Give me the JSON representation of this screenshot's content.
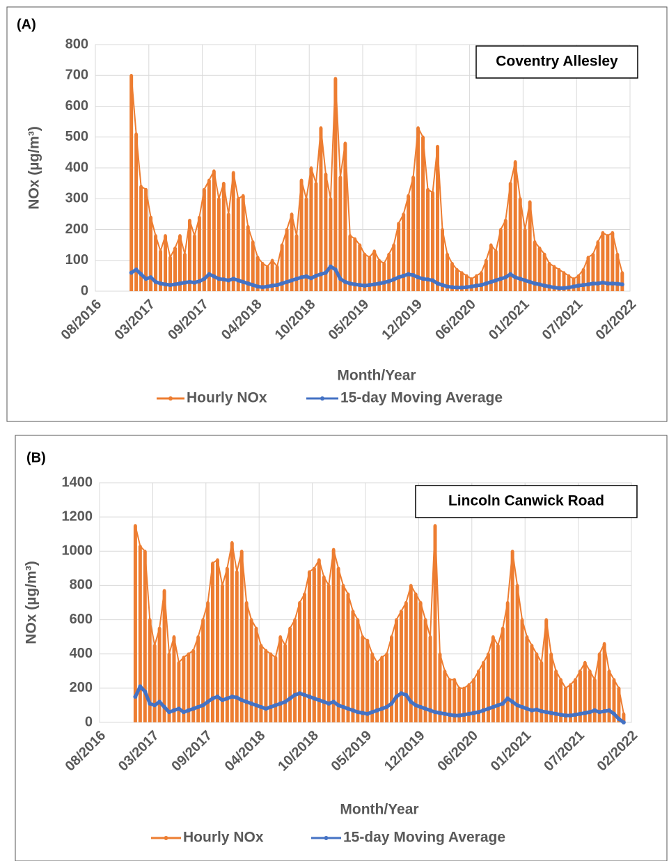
{
  "chart_data": [
    {
      "type": "line",
      "panel_label": "(A)",
      "annotation": "Coventry Allesley",
      "x_label": "Month/Year",
      "y_label": "NOx (µg/m³)",
      "grid": true,
      "xlim": [
        2016.58,
        2022.08
      ],
      "xticks": [
        {
          "value": 2016.58,
          "label": "08/2016"
        },
        {
          "value": 2017.13,
          "label": "03/2017"
        },
        {
          "value": 2017.68,
          "label": "09/2017"
        },
        {
          "value": 2018.23,
          "label": "04/2018"
        },
        {
          "value": 2018.78,
          "label": "10/2018"
        },
        {
          "value": 2019.33,
          "label": "05/2019"
        },
        {
          "value": 2019.88,
          "label": "12/2019"
        },
        {
          "value": 2020.43,
          "label": "06/2020"
        },
        {
          "value": 2020.98,
          "label": "01/2021"
        },
        {
          "value": 2021.53,
          "label": "07/2021"
        },
        {
          "value": 2022.08,
          "label": "02/2022"
        }
      ],
      "ylim": [
        0,
        800
      ],
      "yticks": [
        0,
        100,
        200,
        300,
        400,
        500,
        600,
        700,
        800
      ],
      "x": [
        2016.95,
        2017.0,
        2017.05,
        2017.1,
        2017.15,
        2017.2,
        2017.25,
        2017.3,
        2017.35,
        2017.4,
        2017.45,
        2017.5,
        2017.55,
        2017.6,
        2017.65,
        2017.7,
        2017.75,
        2017.8,
        2017.85,
        2017.9,
        2017.95,
        2018.0,
        2018.05,
        2018.1,
        2018.15,
        2018.2,
        2018.25,
        2018.3,
        2018.35,
        2018.4,
        2018.45,
        2018.5,
        2018.55,
        2018.6,
        2018.65,
        2018.7,
        2018.75,
        2018.8,
        2018.85,
        2018.9,
        2018.95,
        2019.0,
        2019.05,
        2019.1,
        2019.15,
        2019.2,
        2019.25,
        2019.3,
        2019.35,
        2019.4,
        2019.45,
        2019.5,
        2019.55,
        2019.6,
        2019.65,
        2019.7,
        2019.75,
        2019.8,
        2019.85,
        2019.9,
        2019.95,
        2020.0,
        2020.05,
        2020.1,
        2020.15,
        2020.2,
        2020.25,
        2020.3,
        2020.35,
        2020.4,
        2020.45,
        2020.5,
        2020.55,
        2020.6,
        2020.65,
        2020.7,
        2020.75,
        2020.8,
        2020.85,
        2020.9,
        2020.95,
        2021.0,
        2021.05,
        2021.1,
        2021.15,
        2021.2,
        2021.25,
        2021.3,
        2021.35,
        2021.4,
        2021.45,
        2021.5,
        2021.55,
        2021.6,
        2021.65,
        2021.7,
        2021.75,
        2021.8,
        2021.85,
        2021.9,
        2021.95,
        2022.0
      ],
      "series": [
        {
          "name": "Hourly NOx",
          "color": "#ed7d31",
          "values": [
            700,
            510,
            340,
            330,
            240,
            180,
            130,
            180,
            110,
            140,
            180,
            120,
            230,
            180,
            240,
            330,
            360,
            390,
            300,
            350,
            250,
            385,
            300,
            310,
            210,
            160,
            110,
            90,
            80,
            100,
            80,
            150,
            200,
            250,
            180,
            360,
            300,
            400,
            350,
            530,
            380,
            300,
            690,
            370,
            480,
            180,
            170,
            150,
            120,
            110,
            130,
            100,
            90,
            120,
            150,
            220,
            250,
            310,
            370,
            530,
            500,
            330,
            320,
            470,
            200,
            120,
            90,
            70,
            60,
            50,
            40,
            50,
            60,
            100,
            150,
            130,
            200,
            230,
            350,
            420,
            300,
            200,
            290,
            160,
            140,
            120,
            90,
            80,
            70,
            60,
            50,
            40,
            50,
            70,
            110,
            120,
            160,
            190,
            180,
            190,
            120,
            60
          ]
        },
        {
          "name": "15-day Moving Average",
          "color": "#4472c4",
          "values": [
            60,
            70,
            55,
            40,
            45,
            30,
            25,
            22,
            20,
            22,
            25,
            28,
            30,
            28,
            32,
            40,
            55,
            48,
            40,
            38,
            35,
            40,
            35,
            30,
            25,
            20,
            15,
            13,
            15,
            18,
            20,
            25,
            30,
            35,
            40,
            45,
            48,
            42,
            50,
            55,
            60,
            80,
            70,
            40,
            30,
            25,
            22,
            20,
            18,
            20,
            22,
            25,
            28,
            32,
            38,
            45,
            50,
            55,
            52,
            45,
            40,
            38,
            35,
            25,
            20,
            15,
            13,
            12,
            12,
            13,
            15,
            18,
            20,
            25,
            30,
            35,
            40,
            45,
            55,
            45,
            40,
            35,
            30,
            25,
            22,
            18,
            15,
            12,
            10,
            10,
            12,
            15,
            18,
            20,
            22,
            25,
            25,
            28,
            25,
            25,
            24,
            22
          ]
        }
      ]
    },
    {
      "type": "line",
      "panel_label": "(B)",
      "annotation": "Lincoln Canwick Road",
      "x_label": "Month/Year",
      "y_label": "NOx (µg/m³)",
      "grid": true,
      "xlim": [
        2016.58,
        2022.08
      ],
      "xticks": [
        {
          "value": 2016.58,
          "label": "08/2016"
        },
        {
          "value": 2017.13,
          "label": "03/2017"
        },
        {
          "value": 2017.68,
          "label": "09/2017"
        },
        {
          "value": 2018.23,
          "label": "04/2018"
        },
        {
          "value": 2018.78,
          "label": "10/2018"
        },
        {
          "value": 2019.33,
          "label": "05/2019"
        },
        {
          "value": 2019.88,
          "label": "12/2019"
        },
        {
          "value": 2020.43,
          "label": "06/2020"
        },
        {
          "value": 2020.98,
          "label": "01/2021"
        },
        {
          "value": 2021.53,
          "label": "07/2021"
        },
        {
          "value": 2022.08,
          "label": "02/2022"
        }
      ],
      "ylim": [
        0,
        1400
      ],
      "yticks": [
        0,
        200,
        400,
        600,
        800,
        1000,
        1200,
        1400
      ],
      "x": [
        2016.95,
        2017.0,
        2017.05,
        2017.1,
        2017.15,
        2017.2,
        2017.25,
        2017.3,
        2017.35,
        2017.4,
        2017.45,
        2017.5,
        2017.55,
        2017.6,
        2017.65,
        2017.7,
        2017.75,
        2017.8,
        2017.85,
        2017.9,
        2017.95,
        2018.0,
        2018.05,
        2018.1,
        2018.15,
        2018.2,
        2018.25,
        2018.3,
        2018.35,
        2018.4,
        2018.45,
        2018.5,
        2018.55,
        2018.6,
        2018.65,
        2018.7,
        2018.75,
        2018.8,
        2018.85,
        2018.9,
        2018.95,
        2019.0,
        2019.05,
        2019.1,
        2019.15,
        2019.2,
        2019.25,
        2019.3,
        2019.35,
        2019.4,
        2019.45,
        2019.5,
        2019.55,
        2019.6,
        2019.65,
        2019.7,
        2019.75,
        2019.8,
        2019.85,
        2019.9,
        2019.95,
        2020.0,
        2020.05,
        2020.1,
        2020.15,
        2020.2,
        2020.25,
        2020.3,
        2020.35,
        2020.4,
        2020.45,
        2020.5,
        2020.55,
        2020.6,
        2020.65,
        2020.7,
        2020.75,
        2020.8,
        2020.85,
        2020.9,
        2020.95,
        2021.0,
        2021.05,
        2021.1,
        2021.15,
        2021.2,
        2021.25,
        2021.3,
        2021.35,
        2021.4,
        2021.45,
        2021.5,
        2021.55,
        2021.6,
        2021.65,
        2021.7,
        2021.75,
        2021.8,
        2021.85,
        2021.9,
        2021.95,
        2022.0
      ],
      "series": [
        {
          "name": "Hourly NOx",
          "color": "#ed7d31",
          "values": [
            1150,
            1030,
            1000,
            600,
            450,
            550,
            770,
            400,
            500,
            350,
            380,
            400,
            420,
            500,
            600,
            700,
            930,
            950,
            800,
            900,
            1050,
            880,
            1000,
            700,
            600,
            550,
            450,
            420,
            400,
            380,
            500,
            450,
            550,
            600,
            700,
            750,
            880,
            900,
            950,
            850,
            800,
            1010,
            900,
            800,
            750,
            650,
            600,
            500,
            480,
            400,
            350,
            380,
            400,
            500,
            600,
            650,
            700,
            800,
            750,
            700,
            600,
            500,
            1150,
            400,
            300,
            250,
            250,
            200,
            200,
            220,
            250,
            300,
            350,
            400,
            500,
            450,
            550,
            700,
            1000,
            800,
            600,
            500,
            450,
            400,
            350,
            600,
            400,
            300,
            250,
            200,
            220,
            250,
            300,
            350,
            300,
            250,
            400,
            460,
            300,
            250,
            200,
            50
          ]
        },
        {
          "name": "15-day Moving Average",
          "color": "#4472c4",
          "values": [
            150,
            210,
            180,
            110,
            100,
            120,
            90,
            60,
            70,
            80,
            60,
            70,
            80,
            90,
            100,
            120,
            140,
            150,
            130,
            140,
            150,
            145,
            130,
            120,
            110,
            100,
            90,
            80,
            90,
            100,
            110,
            120,
            140,
            160,
            170,
            160,
            150,
            140,
            130,
            120,
            110,
            120,
            100,
            90,
            80,
            70,
            60,
            55,
            50,
            60,
            70,
            80,
            90,
            110,
            150,
            170,
            160,
            120,
            100,
            90,
            80,
            70,
            60,
            55,
            50,
            45,
            40,
            40,
            45,
            50,
            55,
            60,
            70,
            80,
            90,
            100,
            110,
            140,
            120,
            100,
            90,
            80,
            70,
            75,
            65,
            60,
            55,
            50,
            45,
            40,
            40,
            45,
            50,
            55,
            60,
            70,
            60,
            65,
            70,
            50,
            20,
            0
          ]
        }
      ]
    }
  ]
}
